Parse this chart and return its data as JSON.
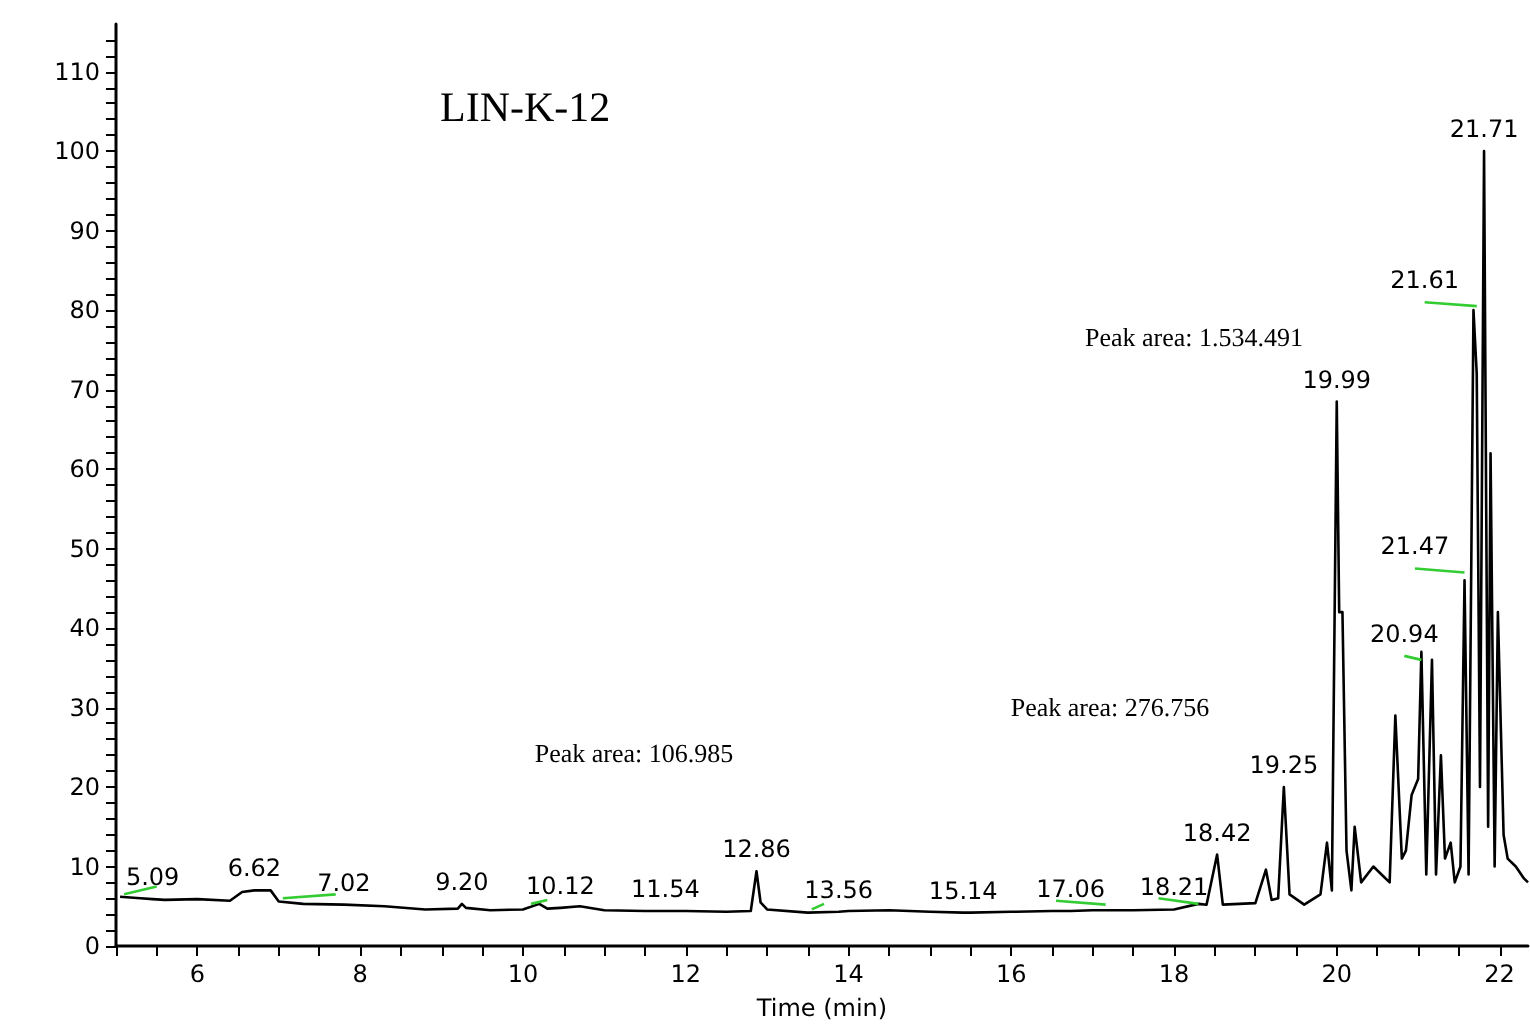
{
  "chart_data": {
    "type": "line",
    "title": "LIN-K-12",
    "xlabel": "Time (min)",
    "xlim": [
      5,
      22.35
    ],
    "ylim": [
      0,
      116
    ],
    "xticks": [
      {
        "value": 5,
        "label": null
      },
      {
        "value": 5.5,
        "label": null
      },
      6,
      {
        "value": 6.5,
        "label": null
      },
      {
        "value": 7,
        "label": null
      },
      {
        "value": 7.5,
        "label": null
      },
      8,
      {
        "value": 8.5,
        "label": null
      },
      {
        "value": 9,
        "label": null
      },
      {
        "value": 9.5,
        "label": null
      },
      10,
      {
        "value": 10.5,
        "label": null
      },
      {
        "value": 11,
        "label": null
      },
      {
        "value": 11.5,
        "label": null
      },
      12,
      {
        "value": 12.5,
        "label": null
      },
      {
        "value": 13,
        "label": null
      },
      {
        "value": 13.5,
        "label": null
      },
      14,
      {
        "value": 14.5,
        "label": null
      },
      {
        "value": 15,
        "label": null
      },
      {
        "value": 15.5,
        "label": null
      },
      16,
      {
        "value": 16.5,
        "label": null
      },
      {
        "value": 17,
        "label": null
      },
      {
        "value": 17.5,
        "label": null
      },
      18,
      {
        "value": 18.5,
        "label": null
      },
      {
        "value": 19,
        "label": null
      },
      {
        "value": 19.5,
        "label": null
      },
      20,
      {
        "value": 20.5,
        "label": null
      },
      {
        "value": 21,
        "label": null
      },
      {
        "value": 21.5,
        "label": null
      },
      22
    ],
    "yticks": [
      0,
      {
        "value": 2,
        "label": null
      },
      {
        "value": 4,
        "label": null
      },
      {
        "value": 6,
        "label": null
      },
      {
        "value": 8,
        "label": null
      },
      10,
      {
        "value": 12,
        "label": null
      },
      {
        "value": 14,
        "label": null
      },
      {
        "value": 16,
        "label": null
      },
      {
        "value": 18,
        "label": null
      },
      20,
      {
        "value": 22,
        "label": null
      },
      {
        "value": 24,
        "label": null
      },
      {
        "value": 26,
        "label": null
      },
      {
        "value": 28,
        "label": null
      },
      30,
      {
        "value": 32,
        "label": null
      },
      {
        "value": 34,
        "label": null
      },
      {
        "value": 36,
        "label": null
      },
      {
        "value": 38,
        "label": null
      },
      40,
      {
        "value": 42,
        "label": null
      },
      {
        "value": 44,
        "label": null
      },
      {
        "value": 46,
        "label": null
      },
      {
        "value": 48,
        "label": null
      },
      50,
      {
        "value": 52,
        "label": null
      },
      {
        "value": 54,
        "label": null
      },
      {
        "value": 56,
        "label": null
      },
      {
        "value": 58,
        "label": null
      },
      60,
      {
        "value": 62,
        "label": null
      },
      {
        "value": 64,
        "label": null
      },
      {
        "value": 66,
        "label": null
      },
      {
        "value": 68,
        "label": null
      },
      70,
      {
        "value": 72,
        "label": null
      },
      {
        "value": 74,
        "label": null
      },
      {
        "value": 76,
        "label": null
      },
      {
        "value": 78,
        "label": null
      },
      80,
      {
        "value": 82,
        "label": null
      },
      {
        "value": 84,
        "label": null
      },
      {
        "value": 86,
        "label": null
      },
      {
        "value": 88,
        "label": null
      },
      90,
      {
        "value": 92,
        "label": null
      },
      {
        "value": 94,
        "label": null
      },
      {
        "value": 96,
        "label": null
      },
      {
        "value": 98,
        "label": null
      },
      100,
      {
        "value": 102,
        "label": null
      },
      {
        "value": 104,
        "label": null
      },
      {
        "value": 106,
        "label": null
      },
      {
        "value": 108,
        "label": null
      },
      110,
      {
        "value": 112,
        "label": null
      },
      {
        "value": 114,
        "label": null
      }
    ],
    "grid": false,
    "marker": "none",
    "line_style": "solid",
    "series": [
      {
        "color": "#000000",
        "x": [
          5.05,
          5.3,
          5.45,
          5.6,
          6.0,
          6.4,
          6.55,
          6.7,
          6.9,
          7.0,
          7.3,
          7.8,
          8.3,
          8.8,
          9.2,
          9.25,
          9.3,
          9.6,
          10.0,
          10.2,
          10.3,
          10.46,
          10.7,
          11.0,
          11.5,
          11.75,
          12.0,
          12.5,
          12.8,
          12.87,
          12.92,
          13.0,
          13.5,
          13.88,
          14.0,
          14.5,
          15.0,
          15.41,
          15.5,
          16.0,
          16.5,
          16.73,
          17.0,
          17.5,
          18.0,
          18.3,
          18.4,
          18.53,
          18.6,
          19.0,
          19.13,
          19.2,
          19.28,
          19.35,
          19.42,
          19.6,
          19.8,
          19.88,
          19.94,
          20.0,
          20.03,
          20.07,
          20.12,
          20.18,
          20.22,
          20.3,
          20.45,
          20.55,
          20.65,
          20.72,
          20.8,
          20.85,
          20.92,
          21.0,
          21.04,
          21.1,
          21.17,
          21.22,
          21.28,
          21.33,
          21.4,
          21.45,
          21.52,
          21.57,
          21.62,
          21.68,
          21.72,
          21.76,
          21.81,
          21.86,
          21.89,
          21.94,
          21.98,
          22.05,
          22.1,
          22.2,
          22.3,
          22.35
        ],
        "values": [
          6.2,
          6.0,
          5.9,
          5.8,
          5.9,
          5.7,
          6.8,
          7.0,
          7.0,
          5.6,
          5.3,
          5.2,
          5.0,
          4.6,
          4.7,
          5.3,
          4.8,
          4.5,
          4.6,
          5.3,
          4.7,
          4.8,
          5.0,
          4.5,
          4.4,
          4.4,
          4.4,
          4.3,
          4.4,
          9.4,
          5.5,
          4.6,
          4.2,
          4.3,
          4.4,
          4.5,
          4.3,
          4.2,
          4.2,
          4.3,
          4.4,
          4.4,
          4.5,
          4.5,
          4.6,
          5.3,
          5.2,
          11.5,
          5.2,
          5.4,
          9.6,
          5.8,
          6.0,
          20.0,
          6.5,
          5.2,
          6.5,
          13.0,
          7.0,
          68.5,
          42.0,
          42.0,
          12.0,
          7.0,
          15.0,
          8.0,
          10.0,
          9.0,
          8.0,
          29.0,
          11.0,
          12.0,
          19.0,
          21.0,
          37.0,
          9.0,
          36.0,
          9.0,
          24.0,
          11.0,
          13.0,
          8.0,
          10.0,
          46.0,
          9.0,
          80.0,
          72.0,
          20.0,
          100.0,
          15.0,
          62.0,
          10.0,
          42.0,
          14.0,
          11.0,
          10.0,
          8.5,
          8.0
        ]
      },
      {
        "color": "#33cc33",
        "x": [
          5.1,
          5.5
        ],
        "values": [
          6.5,
          7.5
        ]
      },
      {
        "color": "#33cc33",
        "x": [
          7.05,
          7.7
        ],
        "values": [
          6.0,
          6.5
        ]
      },
      {
        "color": "#33cc33",
        "x": [
          10.1,
          10.3
        ],
        "values": [
          5.3,
          5.8
        ]
      },
      {
        "color": "#33cc33",
        "x": [
          13.55,
          13.7
        ],
        "values": [
          4.6,
          5.3
        ]
      },
      {
        "color": "#33cc33",
        "x": [
          16.55,
          17.16
        ],
        "values": [
          5.7,
          5.2
        ]
      },
      {
        "color": "#33cc33",
        "x": [
          17.81,
          18.3
        ],
        "values": [
          6.0,
          5.3
        ]
      },
      {
        "color": "#33cc33",
        "x": [
          20.83,
          21.04
        ],
        "values": [
          36.5,
          36.0
        ]
      },
      {
        "color": "#33cc33",
        "x": [
          20.96,
          21.57
        ],
        "values": [
          47.5,
          47.0
        ]
      },
      {
        "color": "#33cc33",
        "x": [
          21.08,
          21.72
        ],
        "values": [
          81.0,
          80.5
        ]
      }
    ],
    "annotations": [
      {
        "text": "5.09",
        "x": 5.45,
        "y": 5.9
      },
      {
        "text": "6.62",
        "x": 6.7,
        "y": 7.0
      },
      {
        "text": "7.02",
        "x": 7.8,
        "y": 5.2
      },
      {
        "text": "9.20",
        "x": 9.25,
        "y": 5.3
      },
      {
        "text": "10.12",
        "x": 10.46,
        "y": 4.8
      },
      {
        "text": "11.54",
        "x": 11.75,
        "y": 4.4
      },
      {
        "text": "12.86",
        "x": 12.87,
        "y": 9.4
      },
      {
        "text": "13.56",
        "x": 13.88,
        "y": 4.3
      },
      {
        "text": "15.14",
        "x": 15.41,
        "y": 4.2
      },
      {
        "text": "17.06",
        "x": 16.73,
        "y": 4.4
      },
      {
        "text": "18.21",
        "x": 18.0,
        "y": 4.6
      },
      {
        "text": "18.42",
        "x": 18.53,
        "y": 11.5
      },
      {
        "text": "19.25",
        "x": 19.35,
        "y": 20.0
      },
      {
        "text": "19.99",
        "x": 20.0,
        "y": 68.5
      },
      {
        "text": "20.94",
        "x": 20.83,
        "y": 36.5
      },
      {
        "text": "21.47",
        "x": 20.96,
        "y": 47.5
      },
      {
        "text": "21.61",
        "x": 21.08,
        "y": 81.0
      },
      {
        "text": "21.71",
        "x": 21.81,
        "y": 100.0
      },
      "Peak area: 106.985",
      "Peak area: 276.756",
      "Peak area: 1.534.491"
    ]
  }
}
